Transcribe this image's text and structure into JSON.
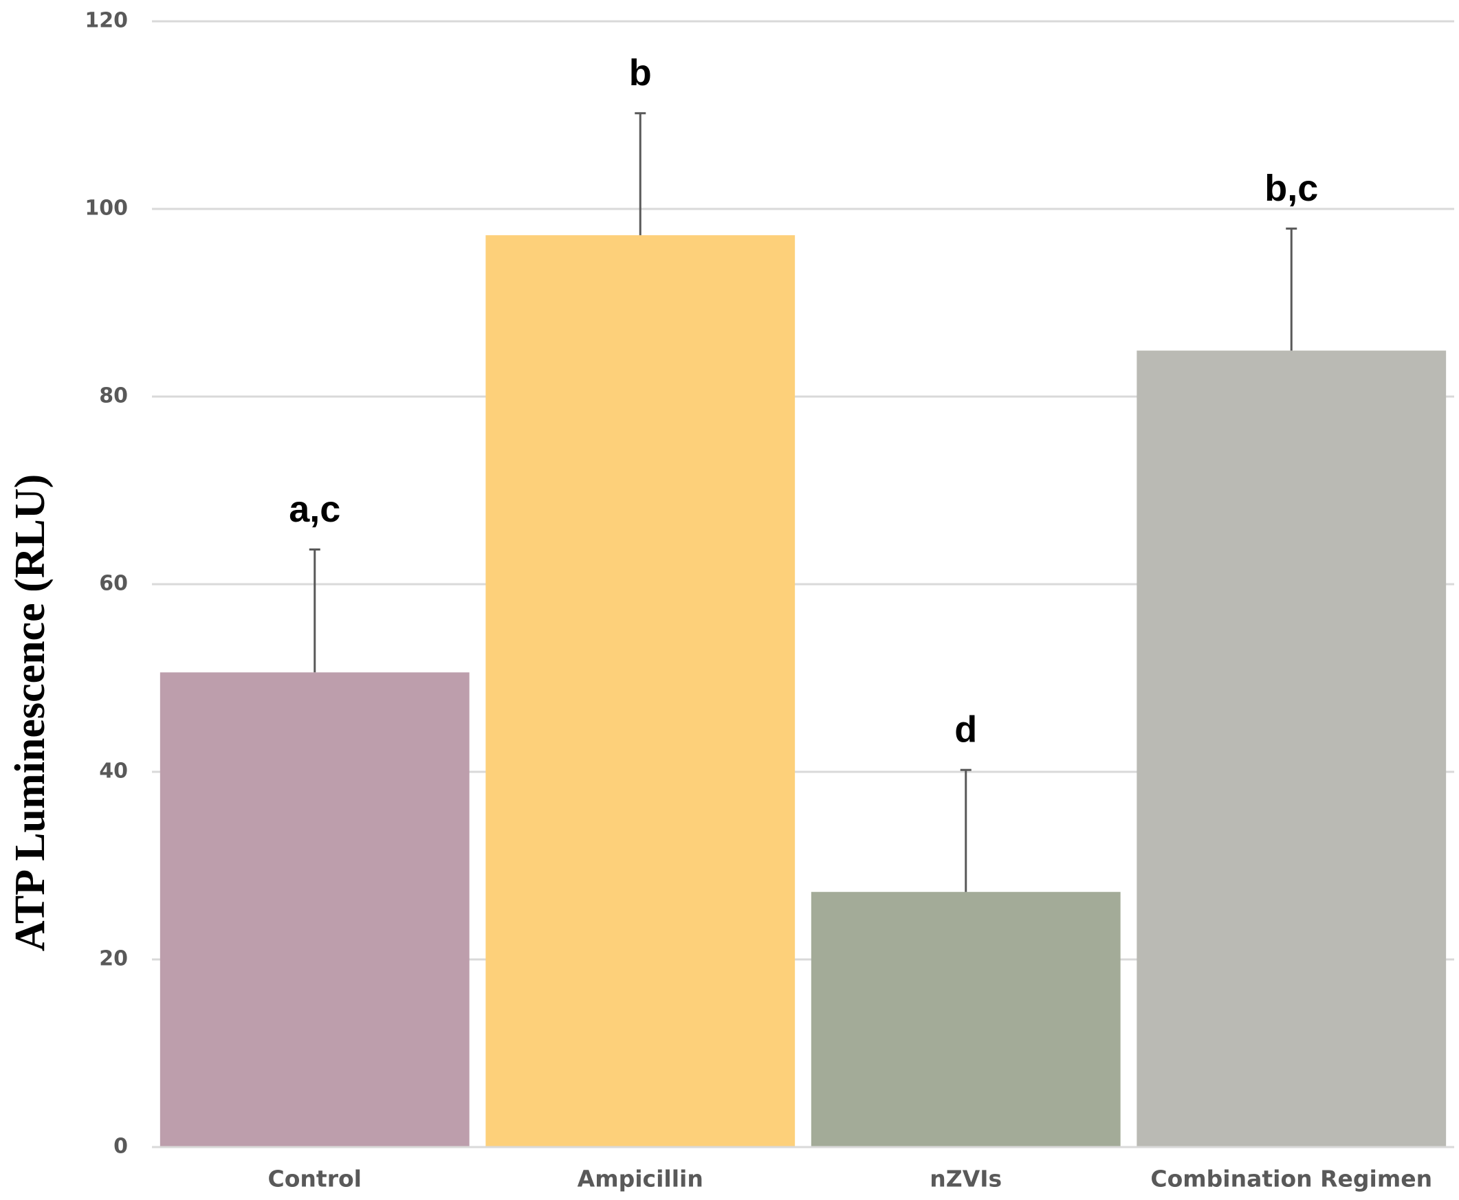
{
  "chart_data": {
    "type": "bar",
    "y_label": "ATP Luminescence (RLU)",
    "categories": [
      "Control",
      "Ampicillin",
      "nZVIs",
      "Combination Regimen"
    ],
    "values": [
      50.6,
      97.2,
      27.2,
      84.9
    ],
    "errors": [
      13.1,
      13,
      13,
      13
    ],
    "annotations": [
      "a,c",
      "b",
      "d",
      "b,c"
    ],
    "colors": [
      "#bd9eac",
      "#fdd07a",
      "#a3ab98",
      "#babab4"
    ],
    "ylim": [
      0,
      120
    ],
    "yticks": [
      0,
      20,
      40,
      60,
      80,
      100,
      120
    ],
    "grid": true
  }
}
